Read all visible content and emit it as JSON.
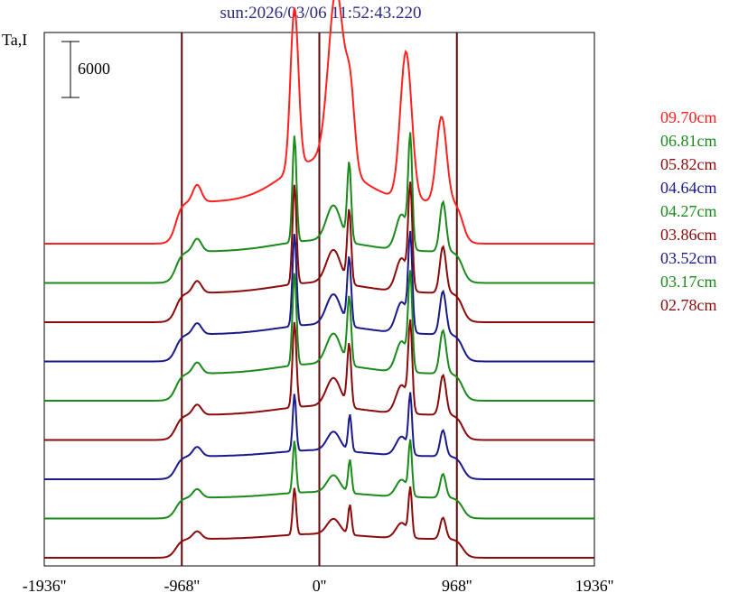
{
  "chart_data": {
    "type": "line",
    "title": "sun:2026/03/06 11:52:43.220",
    "ylabel": "Ta,I",
    "scale_bar_label": "6000",
    "x_tick_labels": [
      "-1936''",
      "-968''",
      "0''",
      "968''",
      "1936''"
    ],
    "x_ticks": [
      -1936,
      -968,
      0,
      968,
      1936
    ],
    "xlim": [
      -1936,
      1936
    ],
    "reference_lines": [
      -968,
      0,
      968
    ],
    "title_color": "#2a2a80",
    "axis_color": "#000000",
    "reference_line_color": "#5a0a0a",
    "series": [
      {
        "name": "09.70cm",
        "color": "#ff2020",
        "baseline": 0,
        "amp": 1.0,
        "profile": "high"
      },
      {
        "name": "06.81cm",
        "color": "#1a8a1a",
        "baseline": -1,
        "amp": 0.75,
        "profile": "mid"
      },
      {
        "name": "05.82cm",
        "color": "#8b0a0a",
        "baseline": -2,
        "amp": 0.7,
        "profile": "mid"
      },
      {
        "name": "04.64cm",
        "color": "#1a1a8a",
        "baseline": -3,
        "amp": 0.65,
        "profile": "mid"
      },
      {
        "name": "04.27cm",
        "color": "#1a8a1a",
        "baseline": -4,
        "amp": 0.65,
        "profile": "mid"
      },
      {
        "name": "03.86cm",
        "color": "#8b0a0a",
        "baseline": -5,
        "amp": 0.6,
        "profile": "mid"
      },
      {
        "name": "03.52cm",
        "color": "#1a1a8a",
        "baseline": -6,
        "amp": 0.55,
        "profile": "low"
      },
      {
        "name": "03.17cm",
        "color": "#1a8a1a",
        "baseline": -7,
        "amp": 0.5,
        "profile": "low"
      },
      {
        "name": "02.78cm",
        "color": "#8b0a0a",
        "baseline": -8,
        "amp": 0.45,
        "profile": "low"
      }
    ]
  }
}
